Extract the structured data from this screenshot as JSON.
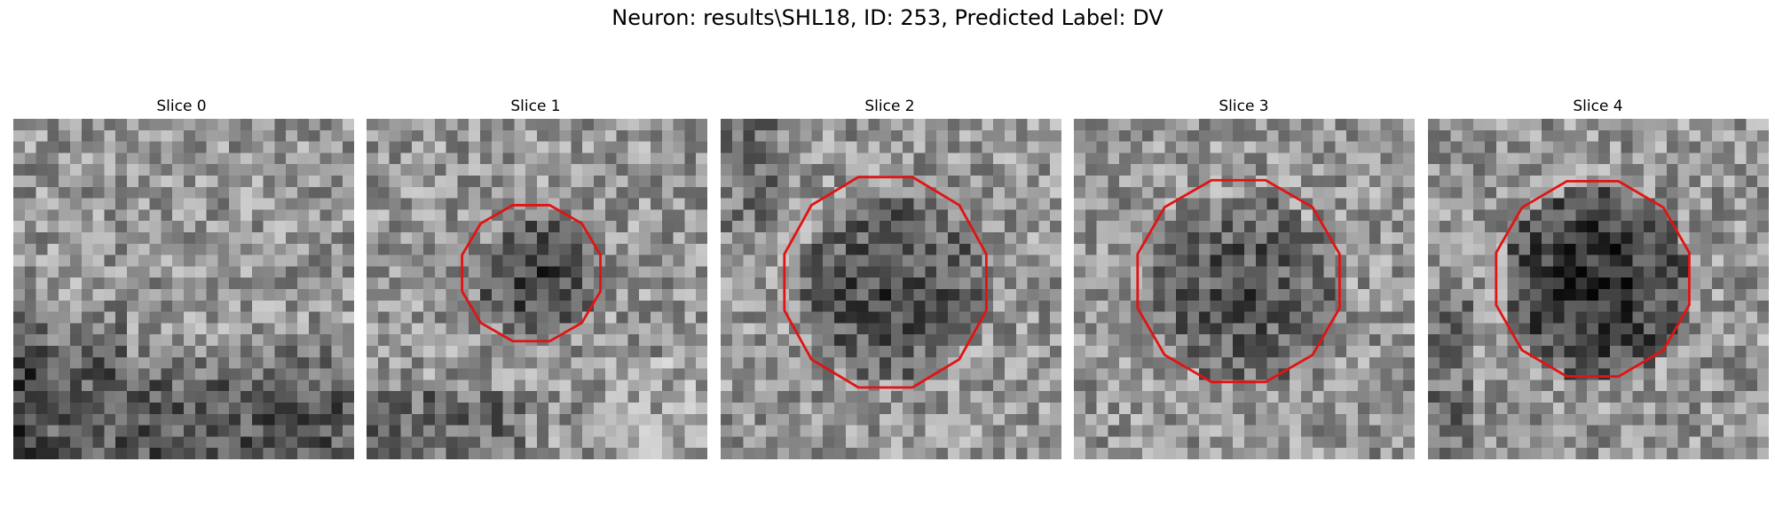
{
  "figure": {
    "title": "Neuron: results\\SHL18, ID: 253, Predicted Label: DV"
  },
  "contour_color": "#e01414",
  "panels": [
    {
      "label": "Slice 0",
      "seed": 11,
      "blob": null,
      "contour": null
    },
    {
      "label": "Slice 1",
      "seed": 23,
      "blob": {
        "cx": 14.5,
        "cy": 13.5,
        "r": 5.2,
        "depth": 95
      },
      "contour": {
        "cx": 14.5,
        "cy": 13.6,
        "rx": 6.3,
        "ry": 6.2
      }
    },
    {
      "label": "Slice 2",
      "seed": 37,
      "blob": {
        "cx": 14.5,
        "cy": 14.5,
        "r": 8.5,
        "depth": 85
      },
      "contour": {
        "cx": 14.5,
        "cy": 14.4,
        "rx": 9.2,
        "ry": 9.6
      }
    },
    {
      "label": "Slice 3",
      "seed": 53,
      "blob": {
        "cx": 14.5,
        "cy": 14.5,
        "r": 8.5,
        "depth": 75
      },
      "contour": {
        "cx": 14.5,
        "cy": 14.3,
        "rx": 9.2,
        "ry": 9.2
      }
    },
    {
      "label": "Slice 4",
      "seed": 71,
      "blob": {
        "cx": 14.5,
        "cy": 14.0,
        "r": 8.5,
        "depth": 120
      },
      "contour": {
        "cx": 14.5,
        "cy": 14.1,
        "rx": 8.8,
        "ry": 8.9
      }
    }
  ]
}
